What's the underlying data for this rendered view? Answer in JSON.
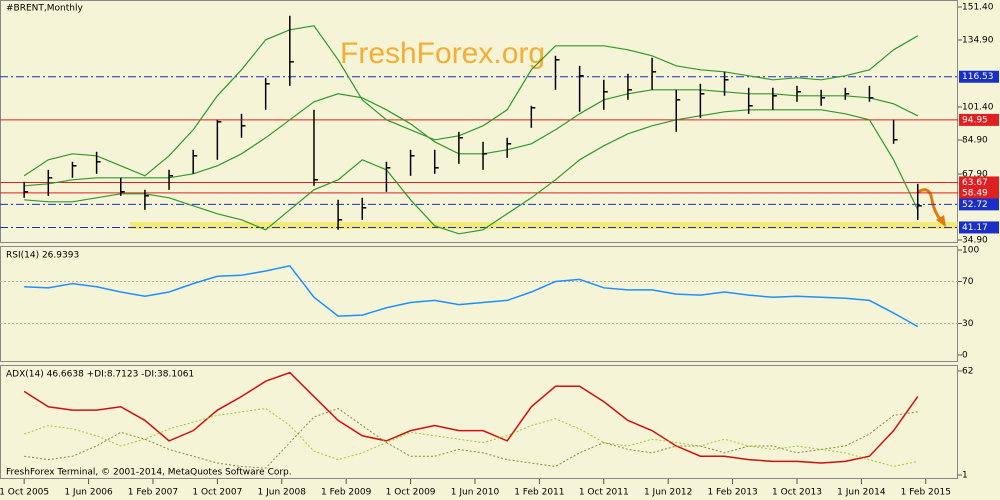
{
  "watermark": "FreshForex.org",
  "copyright": "FreshForex Terminal, © 2001-2014, MetaQuotes Software Corp.",
  "chart_data": [
    {
      "type": "ohlc",
      "title": "#BRENT,Monthly",
      "xlim": [
        "2005-07-01",
        "2015-06-01"
      ],
      "xticks": [
        {
          "value": "2005-10-01",
          "label": "1 Oct 2005"
        },
        {
          "value": "2006-06-01",
          "label": "1 Jun 2006"
        },
        {
          "value": "2007-02-01",
          "label": "1 Feb 2007"
        },
        {
          "value": "2007-10-01",
          "label": "1 Oct 2007"
        },
        {
          "value": "2008-06-01",
          "label": "1 Jun 2008"
        },
        {
          "value": "2009-02-01",
          "label": "1 Feb 2009"
        },
        {
          "value": "2009-10-01",
          "label": "1 Oct 2009"
        },
        {
          "value": "2010-06-01",
          "label": "1 Jun 2010"
        },
        {
          "value": "2011-02-01",
          "label": "1 Feb 2011"
        },
        {
          "value": "2011-10-01",
          "label": "1 Oct 2011"
        },
        {
          "value": "2012-06-01",
          "label": "1 Jun 2012"
        },
        {
          "value": "2013-02-01",
          "label": "1 Feb 2013"
        },
        {
          "value": "2013-10-01",
          "label": "1 Oct 2013"
        },
        {
          "value": "2014-06-01",
          "label": "1 Jun 2014"
        },
        {
          "value": "2015-02-01",
          "label": "1 Feb 2015"
        }
      ],
      "x": [
        "2005-10-01",
        "2006-01-01",
        "2006-04-01",
        "2006-07-01",
        "2006-10-01",
        "2007-01-01",
        "2007-04-01",
        "2007-07-01",
        "2007-10-01",
        "2008-01-01",
        "2008-04-01",
        "2008-07-01",
        "2008-10-01",
        "2009-01-01",
        "2009-04-01",
        "2009-07-01",
        "2009-10-01",
        "2010-01-01",
        "2010-04-01",
        "2010-07-01",
        "2010-10-01",
        "2011-01-01",
        "2011-04-01",
        "2011-07-01",
        "2011-10-01",
        "2012-01-01",
        "2012-04-01",
        "2012-07-01",
        "2012-10-01",
        "2013-01-01",
        "2013-04-01",
        "2013-07-01",
        "2013-10-01",
        "2014-01-01",
        "2014-04-01",
        "2014-07-01",
        "2014-10-01",
        "2015-01-01"
      ],
      "high": [
        64,
        70,
        74,
        79,
        66,
        60,
        70,
        80,
        95,
        98,
        116,
        147,
        100,
        55,
        56,
        74,
        80,
        80,
        89,
        84,
        86,
        102,
        127,
        122,
        115,
        118,
        126,
        110,
        113,
        119,
        111,
        111,
        112,
        110,
        111,
        112,
        95,
        63
      ],
      "low": [
        56,
        57,
        66,
        68,
        57,
        50,
        60,
        68,
        75,
        86,
        100,
        112,
        62,
        40,
        45,
        59,
        67,
        68,
        73,
        70,
        76,
        91,
        110,
        99,
        100,
        105,
        110,
        89,
        96,
        107,
        98,
        100,
        104,
        102,
        105,
        104,
        83,
        45
      ],
      "close": [
        59,
        66,
        72,
        74,
        59,
        57,
        67,
        77,
        94,
        92,
        113,
        124,
        65,
        45,
        51,
        71,
        77,
        71,
        86,
        78,
        83,
        101,
        125,
        117,
        109,
        110,
        119,
        105,
        108,
        115,
        102,
        107,
        109,
        106,
        108,
        106,
        85,
        52
      ],
      "color": "#000000",
      "bands": [
        {
          "color": "#2e9a2e",
          "values": [
            67,
            75,
            78,
            77,
            72,
            67,
            77,
            90,
            107,
            120,
            135,
            140,
            142,
            125,
            105,
            95,
            90,
            85,
            87,
            92,
            100,
            120,
            132,
            132,
            132,
            130,
            127,
            122,
            120,
            119,
            117,
            115,
            116,
            115,
            117,
            120,
            130,
            137
          ]
        },
        {
          "color": "#2e9a2e",
          "values": [
            62,
            63,
            65,
            66,
            66,
            66,
            66,
            68,
            72,
            78,
            86,
            95,
            104,
            108,
            106,
            100,
            93,
            84,
            78,
            78,
            80,
            83,
            90,
            98,
            105,
            108,
            110,
            110,
            110,
            109,
            108,
            108,
            107,
            107,
            107,
            106,
            103,
            97
          ]
        },
        {
          "color": "#2e9a2e",
          "values": [
            55,
            54,
            54,
            56,
            58,
            58,
            56,
            52,
            48,
            45,
            40,
            50,
            60,
            65,
            75,
            70,
            55,
            42,
            38,
            40,
            48,
            56,
            65,
            75,
            82,
            88,
            92,
            95,
            97,
            99,
            100,
            100,
            100,
            100,
            98,
            95,
            75,
            50
          ]
        }
      ],
      "levels": [
        {
          "value": 116.53,
          "color": "#1a2fc8",
          "style": "dashdot"
        },
        {
          "value": 94.95,
          "color": "#e02020",
          "style": "solid"
        },
        {
          "value": 63.67,
          "color": "#e02020",
          "style": "solid"
        },
        {
          "value": 58.49,
          "color": "#e02020",
          "style": "solid"
        },
        {
          "value": 52.72,
          "color": "#1a2fc8",
          "style": "dashdot"
        },
        {
          "value": 41.17,
          "color": "#1a2fc8",
          "style": "dashdot"
        }
      ],
      "ylim": [
        33.4,
        154.9
      ],
      "yticks": [
        {
          "value": 151.4,
          "label": "151.40"
        },
        {
          "value": 134.9,
          "label": "134.90"
        },
        {
          "value": 101.4,
          "label": "101.40"
        },
        {
          "value": 84.9,
          "label": "84.90"
        },
        {
          "value": 67.9,
          "label": "67.90"
        },
        {
          "value": 34.9,
          "label": "34.90"
        }
      ]
    },
    {
      "type": "line",
      "title": "RSI(14) 26.9393",
      "series": [
        {
          "color": "#1e90ff",
          "values": [
            65,
            64,
            68,
            65,
            60,
            56,
            60,
            68,
            75,
            76,
            80,
            85,
            55,
            37,
            38,
            45,
            50,
            52,
            48,
            50,
            52,
            60,
            70,
            72,
            64,
            62,
            62,
            58,
            57,
            60,
            57,
            55,
            56,
            55,
            54,
            52,
            40,
            27
          ]
        }
      ],
      "ylim": [
        -6.7,
        102.9
      ],
      "yticks": [
        100,
        70,
        30,
        0
      ],
      "grid": [
        70,
        30
      ]
    },
    {
      "type": "line",
      "title": "ADX(14) 46.6638 +DI:8.7123 -DI:38.1061",
      "series": [
        {
          "color": "#d01010",
          "style": "solid",
          "values": [
            50,
            41,
            39,
            39,
            41,
            33,
            21,
            27,
            39,
            47,
            56,
            61,
            47,
            33,
            24,
            21,
            27,
            30,
            27,
            27,
            21,
            41,
            53,
            53,
            44,
            33,
            27,
            18,
            12,
            12,
            10,
            9,
            9,
            8,
            9,
            12,
            27,
            47
          ]
        },
        {
          "color": "#9acd32",
          "style": "dotted",
          "values": [
            25,
            30,
            28,
            24,
            18,
            22,
            28,
            32,
            36,
            38,
            40,
            30,
            15,
            10,
            14,
            20,
            26,
            24,
            22,
            20,
            24,
            30,
            34,
            28,
            20,
            18,
            22,
            20,
            18,
            22,
            18,
            16,
            18,
            16,
            14,
            10,
            6,
            9
          ]
        },
        {
          "color": "#8a8a40",
          "style": "dotted",
          "values": [
            12,
            10,
            12,
            18,
            26,
            22,
            16,
            12,
            8,
            6,
            5,
            20,
            35,
            40,
            30,
            20,
            12,
            12,
            16,
            14,
            10,
            8,
            6,
            14,
            20,
            16,
            14,
            18,
            18,
            14,
            18,
            18,
            14,
            16,
            18,
            25,
            36,
            38
          ]
        }
      ],
      "ylim": [
        -1.35,
        64.9
      ],
      "yticks": [
        62,
        1
      ]
    }
  ]
}
